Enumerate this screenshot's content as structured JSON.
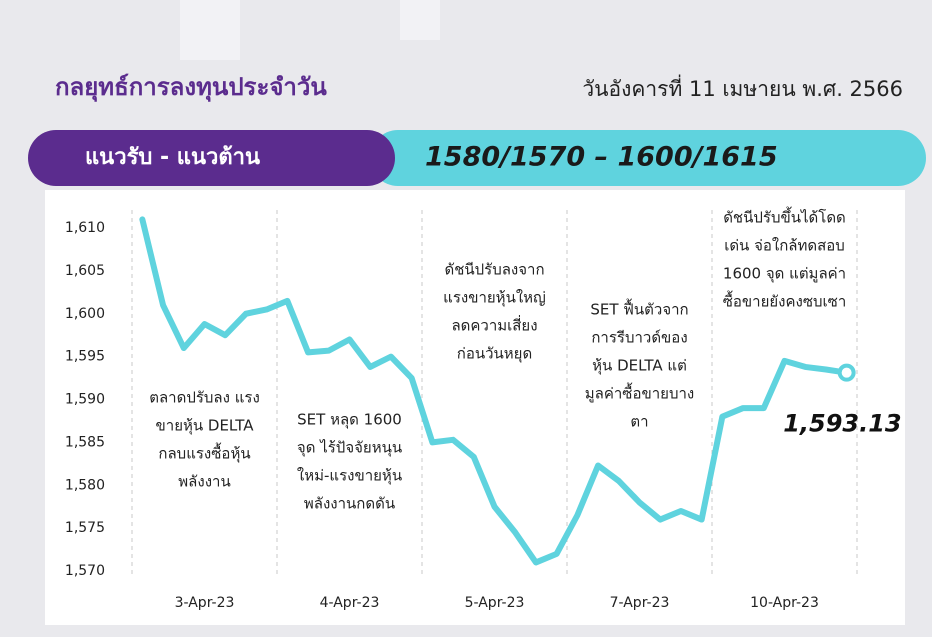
{
  "header": {
    "title": "กลยุทธ์การลงทุนประจำวัน",
    "date": "วันอังคารที่ 11 เมษายน พ.ศ. 2566"
  },
  "banner": {
    "label": "แนวรับ - แนวต้าน",
    "range": "1580/1570 – 1600/1615"
  },
  "chart_data": {
    "type": "line",
    "categories": [
      null,
      null,
      null,
      "3-Apr-23",
      null,
      null,
      null,
      null,
      null,
      null,
      "4-Apr-23",
      null,
      null,
      null,
      null,
      null,
      null,
      "5-Apr-23",
      null,
      null,
      null,
      null,
      null,
      null,
      "7-Apr-23",
      null,
      null,
      null,
      null,
      null,
      null,
      "10-Apr-23",
      null,
      null,
      null
    ],
    "series": [
      {
        "color": "#5fd3de",
        "values": [
          1611,
          1601,
          1596,
          1598.8,
          1597.5,
          1600,
          1600.5,
          1601.5,
          1595.5,
          1595.7,
          1597,
          1593.8,
          1595,
          1592.5,
          1585,
          1585.3,
          1583.3,
          1577.5,
          1574.5,
          1571,
          1572,
          1576.5,
          1582.3,
          1580.5,
          1578,
          1576,
          1577,
          1576,
          1588,
          1589,
          1589,
          1594.5,
          1593.8,
          1593.5,
          1593.13
        ],
        "value_labels": [
          null,
          null,
          null,
          null,
          null,
          null,
          null,
          null,
          null,
          null,
          null,
          null,
          null,
          null,
          null,
          null,
          null,
          null,
          null,
          null,
          null,
          null,
          null,
          null,
          null,
          null,
          null,
          null,
          null,
          null,
          null,
          null,
          null,
          null,
          "1,593.13"
        ]
      }
    ],
    "ylim": [
      1570,
      1610
    ],
    "yticks": [
      {
        "value": 1570,
        "label": "1,570"
      },
      {
        "value": 1575,
        "label": "1,575"
      },
      {
        "value": 1580,
        "label": "1,580"
      },
      {
        "value": 1585,
        "label": "1,585"
      },
      {
        "value": 1590,
        "label": "1,590"
      },
      {
        "value": 1595,
        "label": "1,595"
      },
      {
        "value": 1600,
        "label": "1,600"
      },
      {
        "value": 1605,
        "label": "1,605"
      },
      {
        "value": 1610,
        "label": "1,610"
      }
    ],
    "annotations": [
      [
        "ตลาดปรับลง แรง",
        "ขายหุ้น DELTA",
        "กลบแรงซื้อหุ้น",
        "พลังงาน"
      ],
      [
        "SET หลุด 1600",
        "จุด ไร้ปัจจัยหนุน",
        "ใหม่-แรงขายหุ้น",
        "พลังงานกดดัน"
      ],
      [
        "ดัชนีปรับลงจาก",
        "แรงขายหุ้นใหญ่",
        "ลดความเสี่ยง",
        "ก่อนวันหยุด"
      ],
      [
        "SET ฟื้นตัวจาก",
        "การรีบาวด์ของ",
        "หุ้น DELTA แต่",
        "มูลค่าซื้อขายบาง",
        "ตา"
      ],
      [
        "ดัชนีปรับขึ้นได้โดด",
        "เด่น จ่อใกล้ทดสอบ",
        "1600 จุด แต่มูลค่า",
        "ซื้อขายยังคงซบเซา"
      ]
    ]
  }
}
